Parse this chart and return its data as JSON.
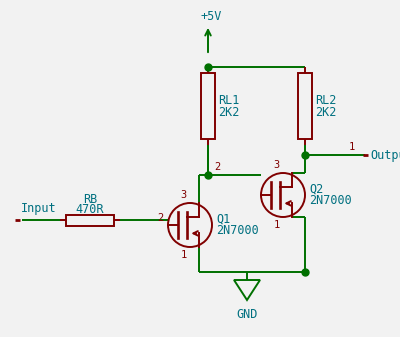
{
  "bg_color": "#f2f2f2",
  "wire_color": "#007000",
  "component_color": "#800000",
  "text_color_cyan": "#007080",
  "text_color_red": "#800000",
  "supply_label": "+5V",
  "gnd_label": "GND",
  "input_label": "Input",
  "output_label": "Output",
  "rb_label1": "RB",
  "rb_label2": "470R",
  "rl1_label1": "RL1",
  "rl1_label2": "2K2",
  "rl2_label1": "RL2",
  "rl2_label2": "2K2",
  "q1_label1": "Q1",
  "q1_label2": "2N7000",
  "q2_label1": "Q2",
  "q2_label2": "2N7000",
  "node_1": "1",
  "node_2": "2",
  "node_3": "3"
}
